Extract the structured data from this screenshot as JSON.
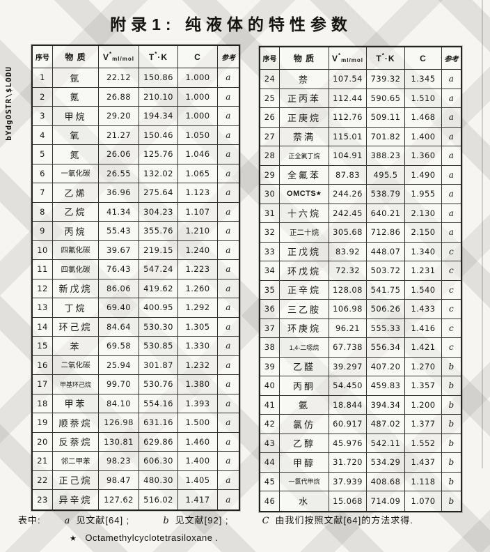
{
  "page": {
    "title": "附录1: 纯液体的特性参数",
    "side_text": "bYdgOSTR\\$LODU"
  },
  "table": {
    "headers": {
      "no": "序号",
      "substance": "物 质",
      "v_base": "V",
      "v_sup": "*",
      "v_sub": "ml/mol",
      "t_base": "T",
      "t_sup": "*",
      "t_unit": "·K",
      "c": "C",
      "ref": "参考"
    },
    "left_rows": [
      {
        "no": "1",
        "name": "氩",
        "v": "22.12",
        "t": "150.86",
        "c": "1.000",
        "ref": "a"
      },
      {
        "no": "2",
        "name": "氪",
        "v": "26.88",
        "t": "210.10",
        "c": "1.000",
        "ref": "a"
      },
      {
        "no": "3",
        "name": "甲烷",
        "v": "29.20",
        "t": "194.34",
        "c": "1.000",
        "ref": "a"
      },
      {
        "no": "4",
        "name": "氧",
        "v": "21.27",
        "t": "150.46",
        "c": "1.050",
        "ref": "a"
      },
      {
        "no": "5",
        "name": "氮",
        "v": "26.06",
        "t": "125.76",
        "c": "1.046",
        "ref": "a"
      },
      {
        "no": "6",
        "name": "一氧化碳",
        "v": "26.55",
        "t": "132.02",
        "c": "1.065",
        "ref": "a"
      },
      {
        "no": "7",
        "name": "乙烯",
        "v": "36.96",
        "t": "275.64",
        "c": "1.123",
        "ref": "a"
      },
      {
        "no": "8",
        "name": "乙烷",
        "v": "41.34",
        "t": "304.23",
        "c": "1.107",
        "ref": "a"
      },
      {
        "no": "9",
        "name": "丙烷",
        "v": "55.43",
        "t": "355.76",
        "c": "1.210",
        "ref": "a"
      },
      {
        "no": "10",
        "name": "四氟化碳",
        "v": "39.67",
        "t": "219.15",
        "c": "1.240",
        "ref": "a"
      },
      {
        "no": "11",
        "name": "四氯化碳",
        "v": "76.43",
        "t": "547.24",
        "c": "1.223",
        "ref": "a"
      },
      {
        "no": "12",
        "name": "新戊烷",
        "v": "86.06",
        "t": "419.62",
        "c": "1.260",
        "ref": "a"
      },
      {
        "no": "13",
        "name": "丁烷",
        "v": "69.40",
        "t": "400.95",
        "c": "1.292",
        "ref": "a"
      },
      {
        "no": "14",
        "name": "环己烷",
        "v": "84.64",
        "t": "530.30",
        "c": "1.305",
        "ref": "a"
      },
      {
        "no": "15",
        "name": "苯",
        "v": "69.58",
        "t": "530.85",
        "c": "1.330",
        "ref": "a"
      },
      {
        "no": "16",
        "name": "二氧化碳",
        "v": "25.94",
        "t": "301.87",
        "c": "1.232",
        "ref": "a"
      },
      {
        "no": "17",
        "name": "甲基环己烷",
        "v": "99.70",
        "t": "530.76",
        "c": "1.380",
        "ref": "a"
      },
      {
        "no": "18",
        "name": "甲苯",
        "v": "84.10",
        "t": "554.16",
        "c": "1.393",
        "ref": "a"
      },
      {
        "no": "19",
        "name": "顺萘烷",
        "v": "126.98",
        "t": "631.16",
        "c": "1.500",
        "ref": "a"
      },
      {
        "no": "20",
        "name": "反萘烷",
        "v": "130.81",
        "t": "629.86",
        "c": "1.460",
        "ref": "a"
      },
      {
        "no": "21",
        "name": "邻二甲苯",
        "v": "98.23",
        "t": "606.30",
        "c": "1.400",
        "ref": "a"
      },
      {
        "no": "22",
        "name": "正己烷",
        "v": "98.47",
        "t": "480.30",
        "c": "1.405",
        "ref": "a"
      },
      {
        "no": "23",
        "name": "异辛烷",
        "v": "127.62",
        "t": "516.02",
        "c": "1.417",
        "ref": "a"
      }
    ],
    "right_rows": [
      {
        "no": "24",
        "name": "萘",
        "v": "107.54",
        "t": "739.32",
        "c": "1.345",
        "ref": "a"
      },
      {
        "no": "25",
        "name": "正丙苯",
        "v": "112.44",
        "t": "590.65",
        "c": "1.510",
        "ref": "a"
      },
      {
        "no": "26",
        "name": "正庚烷",
        "v": "112.76",
        "t": "509.11",
        "c": "1.468",
        "ref": "a"
      },
      {
        "no": "27",
        "name": "萘满",
        "v": "115.01",
        "t": "701.82",
        "c": "1.400",
        "ref": "a"
      },
      {
        "no": "28",
        "name": "正全氟丁烷",
        "v": "104.91",
        "t": "388.23",
        "c": "1.360",
        "ref": "a"
      },
      {
        "no": "29",
        "name": "全氟苯",
        "v": "87.83",
        "t": "495.5",
        "c": "1.490",
        "ref": "a"
      },
      {
        "no": "30",
        "name": "OMCTS",
        "star": "★",
        "v": "244.26",
        "t": "538.79",
        "c": "1.955",
        "ref": "a"
      },
      {
        "no": "31",
        "name": "十六烷",
        "v": "242.45",
        "t": "640.21",
        "c": "2.130",
        "ref": "a"
      },
      {
        "no": "32",
        "name": "正二十烷",
        "v": "305.68",
        "t": "712.86",
        "c": "2.150",
        "ref": "a"
      },
      {
        "no": "33",
        "name": "正戊烷",
        "v": "83.92",
        "t": "448.07",
        "c": "1.340",
        "ref": "c"
      },
      {
        "no": "34",
        "name": "环戊烷",
        "v": "72.32",
        "t": "503.72",
        "c": "1.231",
        "ref": "c"
      },
      {
        "no": "35",
        "name": "正辛烷",
        "v": "128.08",
        "t": "541.75",
        "c": "1.540",
        "ref": "c"
      },
      {
        "no": "36",
        "name": "三乙胺",
        "v": "106.98",
        "t": "506.26",
        "c": "1.433",
        "ref": "c"
      },
      {
        "no": "37",
        "name": "环庚烷",
        "v": "96.21",
        "t": "555.33",
        "c": "1.416",
        "ref": "c"
      },
      {
        "no": "38",
        "name": "1,4-二噁烷",
        "v": "67.738",
        "t": "556.34",
        "c": "1.421",
        "ref": "c"
      },
      {
        "no": "39",
        "name": "乙醛",
        "v": "39.297",
        "t": "407.20",
        "c": "1.270",
        "ref": "b"
      },
      {
        "no": "40",
        "name": "丙酮",
        "v": "54.450",
        "t": "459.83",
        "c": "1.357",
        "ref": "b"
      },
      {
        "no": "41",
        "name": "氨",
        "v": "18.844",
        "t": "394.34",
        "c": "1.200",
        "ref": "b"
      },
      {
        "no": "42",
        "name": "氯仿",
        "v": "60.917",
        "t": "487.02",
        "c": "1.377",
        "ref": "b"
      },
      {
        "no": "43",
        "name": "乙醇",
        "v": "45.976",
        "t": "542.11",
        "c": "1.552",
        "ref": "b"
      },
      {
        "no": "44",
        "name": "甲醇",
        "v": "31.720",
        "t": "534.29",
        "c": "1.437",
        "ref": "b"
      },
      {
        "no": "45",
        "name": "一氯代甲烷",
        "v": "37.939",
        "t": "408.68",
        "c": "1.118",
        "ref": "b"
      },
      {
        "no": "46",
        "name": "水",
        "v": "15.068",
        "t": "714.09",
        "c": "1.070",
        "ref": "b"
      }
    ]
  },
  "footer": {
    "prefix": "表中:",
    "a_key": "a",
    "a_text": "见文献[64] ;",
    "b_key": "b",
    "b_text": "见文献[92] ;",
    "c_key": "C",
    "c_text": "由我们按照文献[64]的方法求得.",
    "star": "★",
    "star_text": "Octamethylcyclotetrasiloxane ."
  }
}
